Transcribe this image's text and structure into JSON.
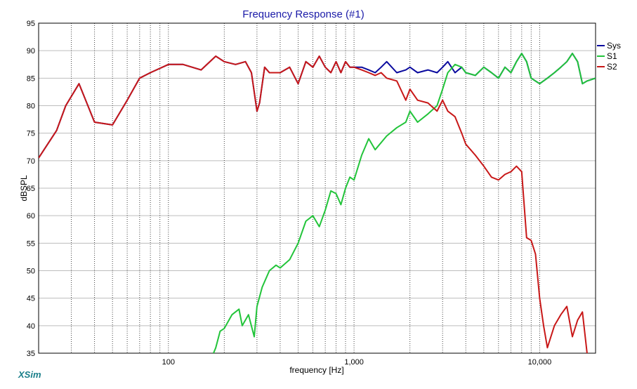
{
  "chart_data": {
    "type": "line",
    "title": "Frequency Response (#1)",
    "xlabel": "frequency [Hz]",
    "ylabel": "dBSPL",
    "xscale": "log",
    "xlim": [
      20,
      20000
    ],
    "ylim": [
      35,
      95
    ],
    "yticks": [
      35,
      40,
      45,
      50,
      55,
      60,
      65,
      70,
      75,
      80,
      85,
      90,
      95
    ],
    "xtick_labels": [
      {
        "value": 100,
        "label": "100"
      },
      {
        "value": 1000,
        "label": "1,000"
      },
      {
        "value": 10000,
        "label": "10,000"
      }
    ],
    "grid": true,
    "legend_position": "top-right",
    "brand": "XSim",
    "series": [
      {
        "name": "Sys",
        "color": "#0a0a9e",
        "x": [
          20,
          25,
          28,
          33,
          40,
          50,
          60,
          70,
          80,
          100,
          120,
          150,
          180,
          200,
          230,
          260,
          280,
          300,
          310,
          330,
          350,
          400,
          450,
          500,
          550,
          600,
          650,
          700,
          750,
          800,
          850,
          900,
          950,
          1000,
          1100,
          1200,
          1300,
          1400,
          1500,
          1700,
          1900,
          2000,
          2200,
          2500,
          2800,
          3000,
          3200,
          3500,
          3800,
          4000,
          4500,
          5000,
          5500,
          6000,
          6500,
          7000,
          7500,
          8000,
          8500,
          9000,
          10000,
          11000,
          12000,
          13000,
          14000,
          15000,
          16000,
          17000,
          18000,
          20000
        ],
        "y": [
          70.5,
          75.5,
          80,
          84,
          77,
          76.5,
          81,
          85,
          86,
          87.5,
          87.5,
          86.5,
          89,
          88,
          87.5,
          88,
          86,
          79,
          80.5,
          87,
          86,
          86,
          87,
          84,
          88,
          87,
          89,
          87,
          86,
          88,
          86,
          88,
          87,
          87,
          87,
          86.5,
          86,
          87,
          88,
          86,
          86.5,
          87,
          86,
          86.5,
          86,
          87,
          88,
          86,
          87,
          86,
          85.5,
          87,
          86,
          85,
          87,
          86,
          88,
          89.5,
          88,
          85,
          84,
          85,
          86,
          87,
          88,
          89.5,
          88,
          84,
          84.5,
          85
        ]
      },
      {
        "name": "S1",
        "color": "#22c43a",
        "x": [
          175,
          180,
          190,
          200,
          220,
          240,
          250,
          270,
          290,
          300,
          320,
          350,
          380,
          400,
          450,
          500,
          550,
          600,
          650,
          700,
          750,
          800,
          850,
          900,
          950,
          1000,
          1100,
          1200,
          1300,
          1500,
          1700,
          1900,
          2000,
          2200,
          2500,
          2800,
          3000,
          3200,
          3500,
          3800,
          4000,
          4500,
          5000,
          5500,
          6000,
          6500,
          7000,
          7500,
          8000,
          8500,
          9000,
          10000,
          11000,
          12000,
          13000,
          14000,
          15000,
          16000,
          17000,
          18000,
          20000
        ],
        "y": [
          35,
          36,
          39,
          39.5,
          42,
          43,
          40,
          42,
          38,
          43.5,
          47,
          50,
          51,
          50.5,
          52,
          55,
          59,
          60,
          58,
          61,
          64.5,
          64,
          62,
          65,
          67,
          66.5,
          71,
          74,
          72,
          74.5,
          76,
          77,
          79,
          77,
          78.5,
          80,
          83,
          86,
          87.5,
          87,
          86,
          85.5,
          87,
          86,
          85,
          87,
          86,
          88,
          89.5,
          88,
          85,
          84,
          85,
          86,
          87,
          88,
          89.5,
          88,
          84,
          84.5,
          85
        ]
      },
      {
        "name": "S2",
        "color": "#c81818",
        "x": [
          20,
          25,
          28,
          33,
          40,
          50,
          60,
          70,
          80,
          100,
          120,
          150,
          180,
          200,
          230,
          260,
          280,
          300,
          310,
          330,
          350,
          400,
          450,
          500,
          550,
          600,
          650,
          700,
          750,
          800,
          850,
          900,
          950,
          1000,
          1100,
          1200,
          1300,
          1400,
          1500,
          1700,
          1900,
          2000,
          2200,
          2500,
          2800,
          3000,
          3200,
          3500,
          3800,
          4000,
          4500,
          5000,
          5500,
          6000,
          6500,
          7000,
          7500,
          8000,
          8500,
          9000,
          9500,
          10000,
          10500,
          11000,
          12000,
          13000,
          14000,
          15000,
          16000,
          17000,
          18000
        ],
        "y": [
          70.5,
          75.5,
          80,
          84,
          77,
          76.5,
          81,
          85,
          86,
          87.5,
          87.5,
          86.5,
          89,
          88,
          87.5,
          88,
          86,
          79,
          80.5,
          87,
          86,
          86,
          87,
          84,
          88,
          87,
          89,
          87,
          86,
          88,
          86,
          88,
          87,
          87,
          86.5,
          86,
          85.5,
          86,
          85,
          84.5,
          81,
          83,
          81,
          80.5,
          79,
          81,
          79,
          78,
          75,
          73,
          71,
          69,
          67,
          66.5,
          67.5,
          68,
          69,
          68,
          56,
          55.5,
          53,
          45,
          40,
          36,
          40,
          42,
          43.5,
          38,
          41,
          42.5,
          35
        ]
      }
    ]
  }
}
